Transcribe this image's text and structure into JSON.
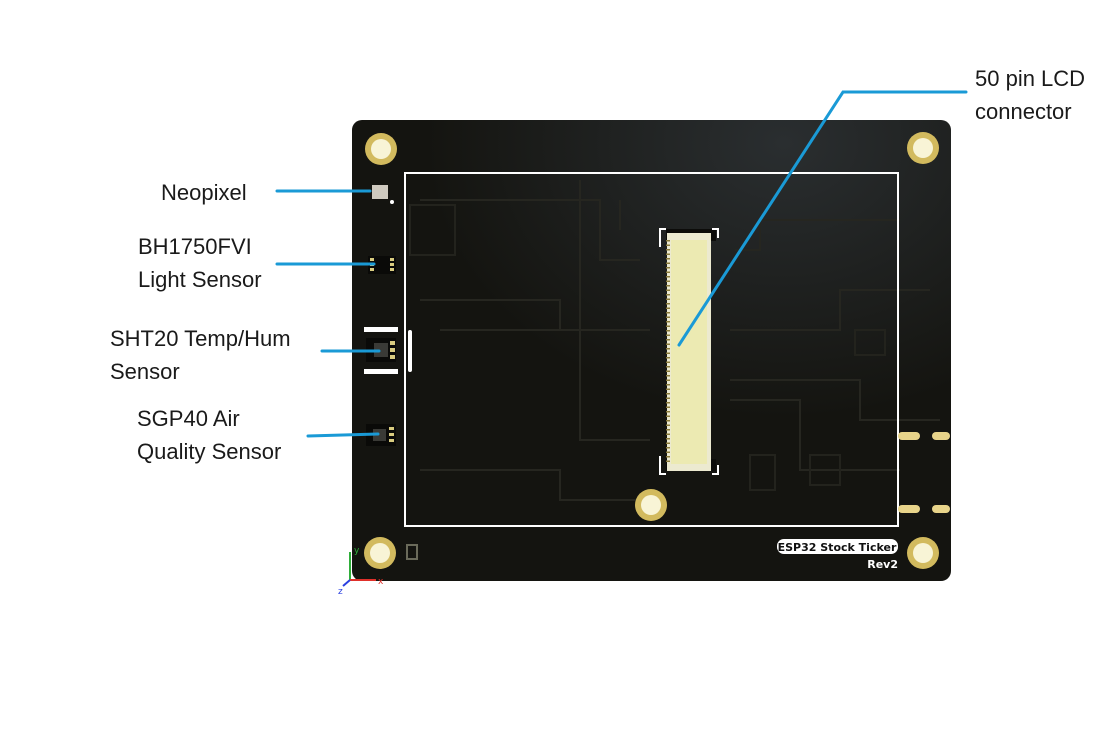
{
  "callouts": {
    "lcd_connector": {
      "line1": "50 pin LCD",
      "line2": "connector"
    },
    "neopixel": {
      "line1": "Neopixel"
    },
    "light_sensor": {
      "line1": "BH1750FVI",
      "line2": "Light Sensor"
    },
    "temp_hum_sensor": {
      "line1": "SHT20 Temp/Hum",
      "line2": "Sensor"
    },
    "air_quality_sensor": {
      "line1": "SGP40 Air",
      "line2": "Quality Sensor"
    }
  },
  "board": {
    "silkscreen_title": "ESP32 Stock Ticker",
    "revision": "Rev2",
    "axis_labels": {
      "x": "x",
      "y": "y",
      "z": "z"
    }
  },
  "colors": {
    "callout_line": "#1a9ad6",
    "pcb": "#141410",
    "pad_gold": "#e8d48a",
    "connector": "#eeeab8",
    "silkscreen": "#ffffff"
  }
}
